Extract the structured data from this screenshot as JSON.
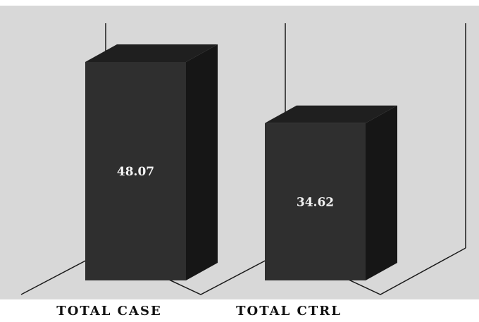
{
  "chart_data": {
    "type": "bar",
    "categories": [
      "TOTAL CASE",
      "TOTAL CTRL"
    ],
    "values": [
      48.07,
      34.62
    ],
    "data_labels": [
      "48.07",
      "34.62"
    ],
    "title": "",
    "xlabel": "",
    "ylabel": "",
    "ylim": [
      0,
      60
    ],
    "grid": false,
    "legend": "none",
    "style": "3d-column"
  },
  "colors": {
    "background": "#d8d8d8",
    "bar_front": "#2f2f2f",
    "bar_top": "#1f1f1f",
    "bar_side": "#161616",
    "axis_line": "#1a1a1a",
    "value_text": "#f2f2f2",
    "category_text": "#111111"
  }
}
